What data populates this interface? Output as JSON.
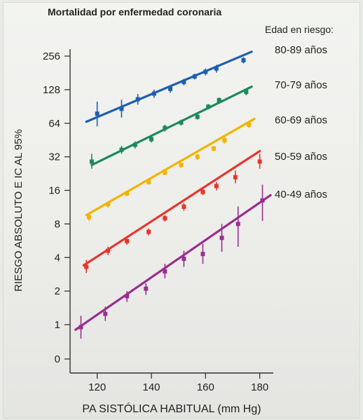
{
  "chart_data": {
    "type": "line",
    "title": "Mortalidad por enfermedad coronaria",
    "xlabel": "PA SISTÓLICA HABITUAL (mm Hg)",
    "ylabel": "RIESGO ABSOLUTO E IC AL 95%",
    "xlim": [
      110,
      185
    ],
    "ylim": [
      0,
      256
    ],
    "y_scale": "log2",
    "x_ticks": [
      "120",
      "140",
      "160",
      "180"
    ],
    "y_ticks": [
      "0",
      "1",
      "2",
      "4",
      "8",
      "16",
      "32",
      "64",
      "128",
      "256"
    ],
    "legend_title": "Edad en riesgo:",
    "legend_placement": "right",
    "series": [
      {
        "name": "80-89 años",
        "color": "#1f5fb0",
        "line": [
          [
            116,
            66
          ],
          [
            177,
            280
          ]
        ],
        "points": [
          {
            "x": 120,
            "y": 78,
            "lo": 60,
            "hi": 100
          },
          {
            "x": 129,
            "y": 86,
            "lo": 72,
            "hi": 104
          },
          {
            "x": 135,
            "y": 105,
            "lo": 94,
            "hi": 117
          },
          {
            "x": 141,
            "y": 118,
            "lo": 108,
            "hi": 128
          },
          {
            "x": 147,
            "y": 130,
            "lo": 120,
            "hi": 140
          },
          {
            "x": 152,
            "y": 150,
            "lo": 140,
            "hi": 160
          },
          {
            "x": 156,
            "y": 168,
            "lo": 158,
            "hi": 178
          },
          {
            "x": 160,
            "y": 185,
            "lo": 172,
            "hi": 198
          },
          {
            "x": 164,
            "y": 198,
            "lo": 182,
            "hi": 214
          },
          {
            "x": 174,
            "y": 235,
            "lo": 220,
            "hi": 250
          }
        ]
      },
      {
        "name": "70-79 años",
        "color": "#1a8a5a",
        "line": [
          [
            118,
            27
          ],
          [
            177,
            136
          ]
        ],
        "points": [
          {
            "x": 118,
            "y": 29,
            "lo": 25,
            "hi": 34
          },
          {
            "x": 129,
            "y": 37,
            "lo": 34,
            "hi": 40
          },
          {
            "x": 134,
            "y": 41,
            "lo": 38,
            "hi": 44
          },
          {
            "x": 140,
            "y": 46,
            "lo": 43,
            "hi": 49
          },
          {
            "x": 145,
            "y": 58,
            "lo": 54,
            "hi": 62
          },
          {
            "x": 151,
            "y": 65,
            "lo": 61,
            "hi": 69
          },
          {
            "x": 157,
            "y": 73,
            "lo": 69,
            "hi": 77
          },
          {
            "x": 161,
            "y": 90,
            "lo": 85,
            "hi": 95
          },
          {
            "x": 165,
            "y": 103,
            "lo": 97,
            "hi": 109
          },
          {
            "x": 175,
            "y": 122,
            "lo": 114,
            "hi": 130
          }
        ]
      },
      {
        "name": "60-69 años",
        "color": "#f2b400",
        "line": [
          [
            116,
            9.6
          ],
          [
            178,
            70
          ]
        ],
        "points": [
          {
            "x": 117,
            "y": 9.2,
            "lo": 8.5,
            "hi": 10.0
          },
          {
            "x": 124,
            "y": 12,
            "lo": 11.2,
            "hi": 12.8
          },
          {
            "x": 131,
            "y": 15,
            "lo": 14.2,
            "hi": 15.8
          },
          {
            "x": 139,
            "y": 19,
            "lo": 18,
            "hi": 20
          },
          {
            "x": 145,
            "y": 23,
            "lo": 22,
            "hi": 24
          },
          {
            "x": 151,
            "y": 27,
            "lo": 25.5,
            "hi": 28.5
          },
          {
            "x": 157,
            "y": 32,
            "lo": 30,
            "hi": 34
          },
          {
            "x": 163,
            "y": 38,
            "lo": 36,
            "hi": 40
          },
          {
            "x": 167,
            "y": 45,
            "lo": 42,
            "hi": 48
          },
          {
            "x": 176,
            "y": 62,
            "lo": 58,
            "hi": 66
          }
        ]
      },
      {
        "name": "50-59 años",
        "color": "#e8352b",
        "line": [
          [
            115,
            3.4
          ],
          [
            180,
            36
          ]
        ],
        "points": [
          {
            "x": 116,
            "y": 3.3,
            "lo": 2.9,
            "hi": 3.8
          },
          {
            "x": 124,
            "y": 4.6,
            "lo": 4.2,
            "hi": 5.0
          },
          {
            "x": 131,
            "y": 5.6,
            "lo": 5.2,
            "hi": 6.0
          },
          {
            "x": 139,
            "y": 6.8,
            "lo": 6.3,
            "hi": 7.3
          },
          {
            "x": 145,
            "y": 9,
            "lo": 8.4,
            "hi": 9.6
          },
          {
            "x": 152,
            "y": 11.4,
            "lo": 10.5,
            "hi": 12.3
          },
          {
            "x": 159,
            "y": 15.5,
            "lo": 14.5,
            "hi": 16.5
          },
          {
            "x": 164,
            "y": 17.5,
            "lo": 16,
            "hi": 19
          },
          {
            "x": 171,
            "y": 21,
            "lo": 18.5,
            "hi": 24
          },
          {
            "x": 180,
            "y": 29,
            "lo": 25,
            "hi": 34
          }
        ]
      },
      {
        "name": "40-49 años",
        "color": "#9b2d8e",
        "line": [
          [
            112,
            0.9
          ],
          [
            184,
            14.5
          ]
        ],
        "points": [
          {
            "x": 114,
            "y": 0.95,
            "lo": 0.75,
            "hi": 1.2
          },
          {
            "x": 123,
            "y": 1.25,
            "lo": 1.08,
            "hi": 1.45
          },
          {
            "x": 131,
            "y": 1.8,
            "lo": 1.6,
            "hi": 2.0
          },
          {
            "x": 138,
            "y": 2.1,
            "lo": 1.85,
            "hi": 2.35
          },
          {
            "x": 145,
            "y": 3.0,
            "lo": 2.6,
            "hi": 3.5
          },
          {
            "x": 152,
            "y": 3.9,
            "lo": 3.3,
            "hi": 4.6
          },
          {
            "x": 159,
            "y": 4.3,
            "lo": 3.5,
            "hi": 5.3
          },
          {
            "x": 166,
            "y": 6.0,
            "lo": 4.5,
            "hi": 8.0
          },
          {
            "x": 172,
            "y": 8.0,
            "lo": 5.0,
            "hi": 11.5
          },
          {
            "x": 181,
            "y": 13,
            "lo": 8.5,
            "hi": 18
          }
        ]
      }
    ]
  }
}
